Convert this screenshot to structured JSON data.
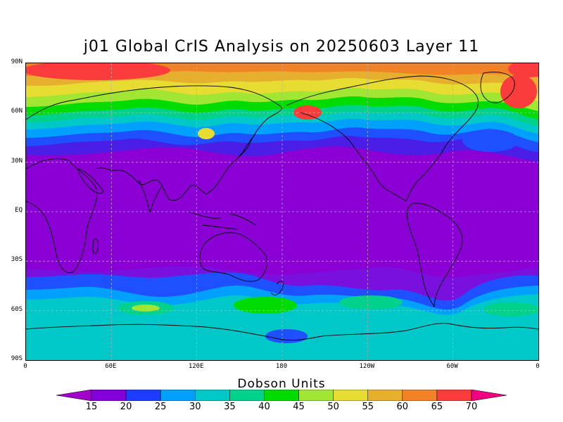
{
  "title": "j01 Global CrIS Analysis on 20250603 Layer 11",
  "map": {
    "projection": "cylindrical equidistant",
    "lon_range": [
      0,
      360
    ],
    "lat_range": [
      -90,
      90
    ],
    "grid": true,
    "y_ticks": [
      "90N",
      "60N",
      "30N",
      "EQ",
      "30S",
      "60S",
      "90S"
    ],
    "x_ticks": [
      "0",
      "60E",
      "120E",
      "180",
      "120W",
      "60W",
      "0"
    ]
  },
  "colorbar": {
    "title": "Dobson Units",
    "levels": [
      15,
      20,
      25,
      30,
      35,
      40,
      45,
      50,
      55,
      60,
      65,
      70
    ],
    "labels": [
      "15",
      "20",
      "25",
      "30",
      "35",
      "40",
      "45",
      "50",
      "55",
      "60",
      "65",
      "70"
    ],
    "colors": [
      "#a000c8",
      "#8200dc",
      "#1e3cff",
      "#00a0ff",
      "#00c8c8",
      "#00d28c",
      "#00dc00",
      "#a0e632",
      "#e6dc32",
      "#e6af2d",
      "#f08228",
      "#fa3c3c",
      "#f00082"
    ]
  }
}
